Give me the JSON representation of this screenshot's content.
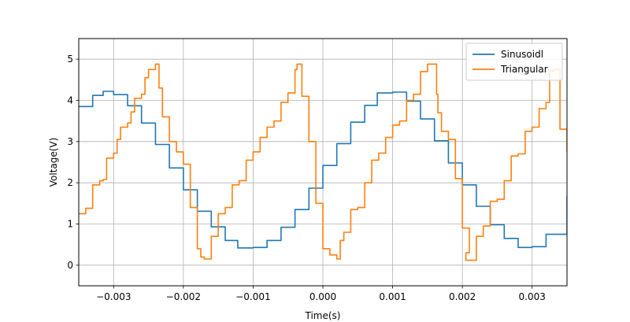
{
  "chart_data": {
    "type": "line",
    "title": "",
    "xlabel": "Time(s)",
    "ylabel": "Voltage(V)",
    "xlim": [
      -0.0035,
      0.0035
    ],
    "ylim": [
      -0.5,
      5.5
    ],
    "grid": true,
    "legend_placement": "top-right",
    "x_ticks": [
      -0.003,
      -0.002,
      -0.001,
      0.0,
      0.001,
      0.002,
      0.003
    ],
    "x_tick_labels": [
      "−0.003",
      "−0.002",
      "−0.001",
      "0.000",
      "0.001",
      "0.002",
      "0.003"
    ],
    "y_ticks": [
      0,
      1,
      2,
      3,
      4,
      5
    ],
    "y_tick_labels": [
      "0",
      "1",
      "2",
      "3",
      "4",
      "5"
    ],
    "series": [
      {
        "name": "Sinusoidl",
        "color": "#1f77b4",
        "x": [
          -0.0035,
          -0.0033,
          -0.00315,
          -0.003,
          -0.0028,
          -0.0026,
          -0.0024,
          -0.0022,
          -0.002,
          -0.0018,
          -0.0016,
          -0.0014,
          -0.00122,
          -0.001,
          -0.0008,
          -0.0006,
          -0.0004,
          -0.0002,
          0.0,
          0.0002,
          0.0004,
          0.0006,
          0.00078,
          0.001,
          0.0012,
          0.0014,
          0.0016,
          0.0018,
          0.002,
          0.0022,
          0.0024,
          0.0026,
          0.0028,
          0.003,
          0.0032,
          0.0035
        ],
        "values": [
          3.85,
          4.12,
          4.22,
          4.14,
          3.87,
          3.45,
          2.93,
          2.36,
          1.83,
          1.31,
          0.93,
          0.6,
          0.42,
          0.43,
          0.6,
          0.92,
          1.35,
          1.87,
          2.42,
          2.95,
          3.47,
          3.88,
          4.18,
          4.2,
          3.98,
          3.55,
          3.02,
          2.48,
          1.95,
          1.43,
          0.98,
          0.65,
          0.43,
          0.45,
          0.75,
          1.68
        ]
      },
      {
        "name": "Triangular",
        "color": "#ff7f0e",
        "x": [
          -0.0035,
          -0.0034,
          -0.0033,
          -0.0032,
          -0.00315,
          -0.0031,
          -0.003,
          -0.00295,
          -0.0029,
          -0.0028,
          -0.00275,
          -0.0027,
          -0.0026,
          -0.00255,
          -0.0025,
          -0.0024,
          -0.00237,
          -0.00235,
          -0.0023,
          -0.0022,
          -0.0021,
          -0.002,
          -0.0019,
          -0.0018,
          -0.00175,
          -0.0017,
          -0.0016,
          -0.0015,
          -0.0014,
          -0.0013,
          -0.0012,
          -0.0011,
          -0.001,
          -0.0009,
          -0.0008,
          -0.0007,
          -0.0006,
          -0.0005,
          -0.0004,
          -0.00037,
          -0.00035,
          -0.0003,
          -0.0002,
          -0.0001,
          0.0,
          0.0001,
          0.0002,
          0.00025,
          0.0003,
          0.0004,
          0.0005,
          0.0006,
          0.0007,
          0.0008,
          0.0009,
          0.001,
          0.0011,
          0.0012,
          0.0013,
          0.0014,
          0.0015,
          0.0016,
          0.00163,
          0.00165,
          0.0017,
          0.0018,
          0.0019,
          0.002,
          0.0021,
          0.00205,
          0.0022,
          0.0023,
          0.0024,
          0.0025,
          0.0026,
          0.0027,
          0.0028,
          0.0029,
          0.003,
          0.0031,
          0.0032,
          0.00325,
          0.0033,
          0.0034,
          0.0035
        ],
        "values": [
          1.25,
          1.38,
          1.95,
          2.05,
          2.08,
          2.6,
          2.72,
          3.05,
          3.35,
          3.45,
          3.72,
          4.05,
          4.15,
          4.55,
          4.75,
          4.88,
          4.88,
          4.3,
          3.6,
          3.0,
          2.75,
          2.45,
          1.4,
          0.4,
          0.2,
          0.15,
          0.7,
          1.25,
          1.4,
          1.95,
          2.05,
          2.55,
          2.75,
          3.1,
          3.35,
          3.5,
          3.95,
          4.18,
          4.75,
          4.88,
          4.88,
          4.1,
          3.0,
          1.5,
          0.4,
          0.25,
          0.15,
          0.6,
          0.8,
          1.35,
          1.4,
          2.0,
          2.55,
          2.72,
          3.1,
          3.4,
          3.5,
          4.0,
          4.15,
          4.7,
          4.88,
          4.88,
          4.15,
          3.7,
          3.25,
          3.05,
          2.1,
          0.9,
          0.3,
          0.12,
          0.7,
          0.95,
          1.55,
          1.6,
          2.05,
          2.65,
          2.7,
          3.25,
          3.35,
          3.8,
          3.95,
          4.7,
          4.75,
          3.3,
          2.75
        ]
      }
    ]
  }
}
